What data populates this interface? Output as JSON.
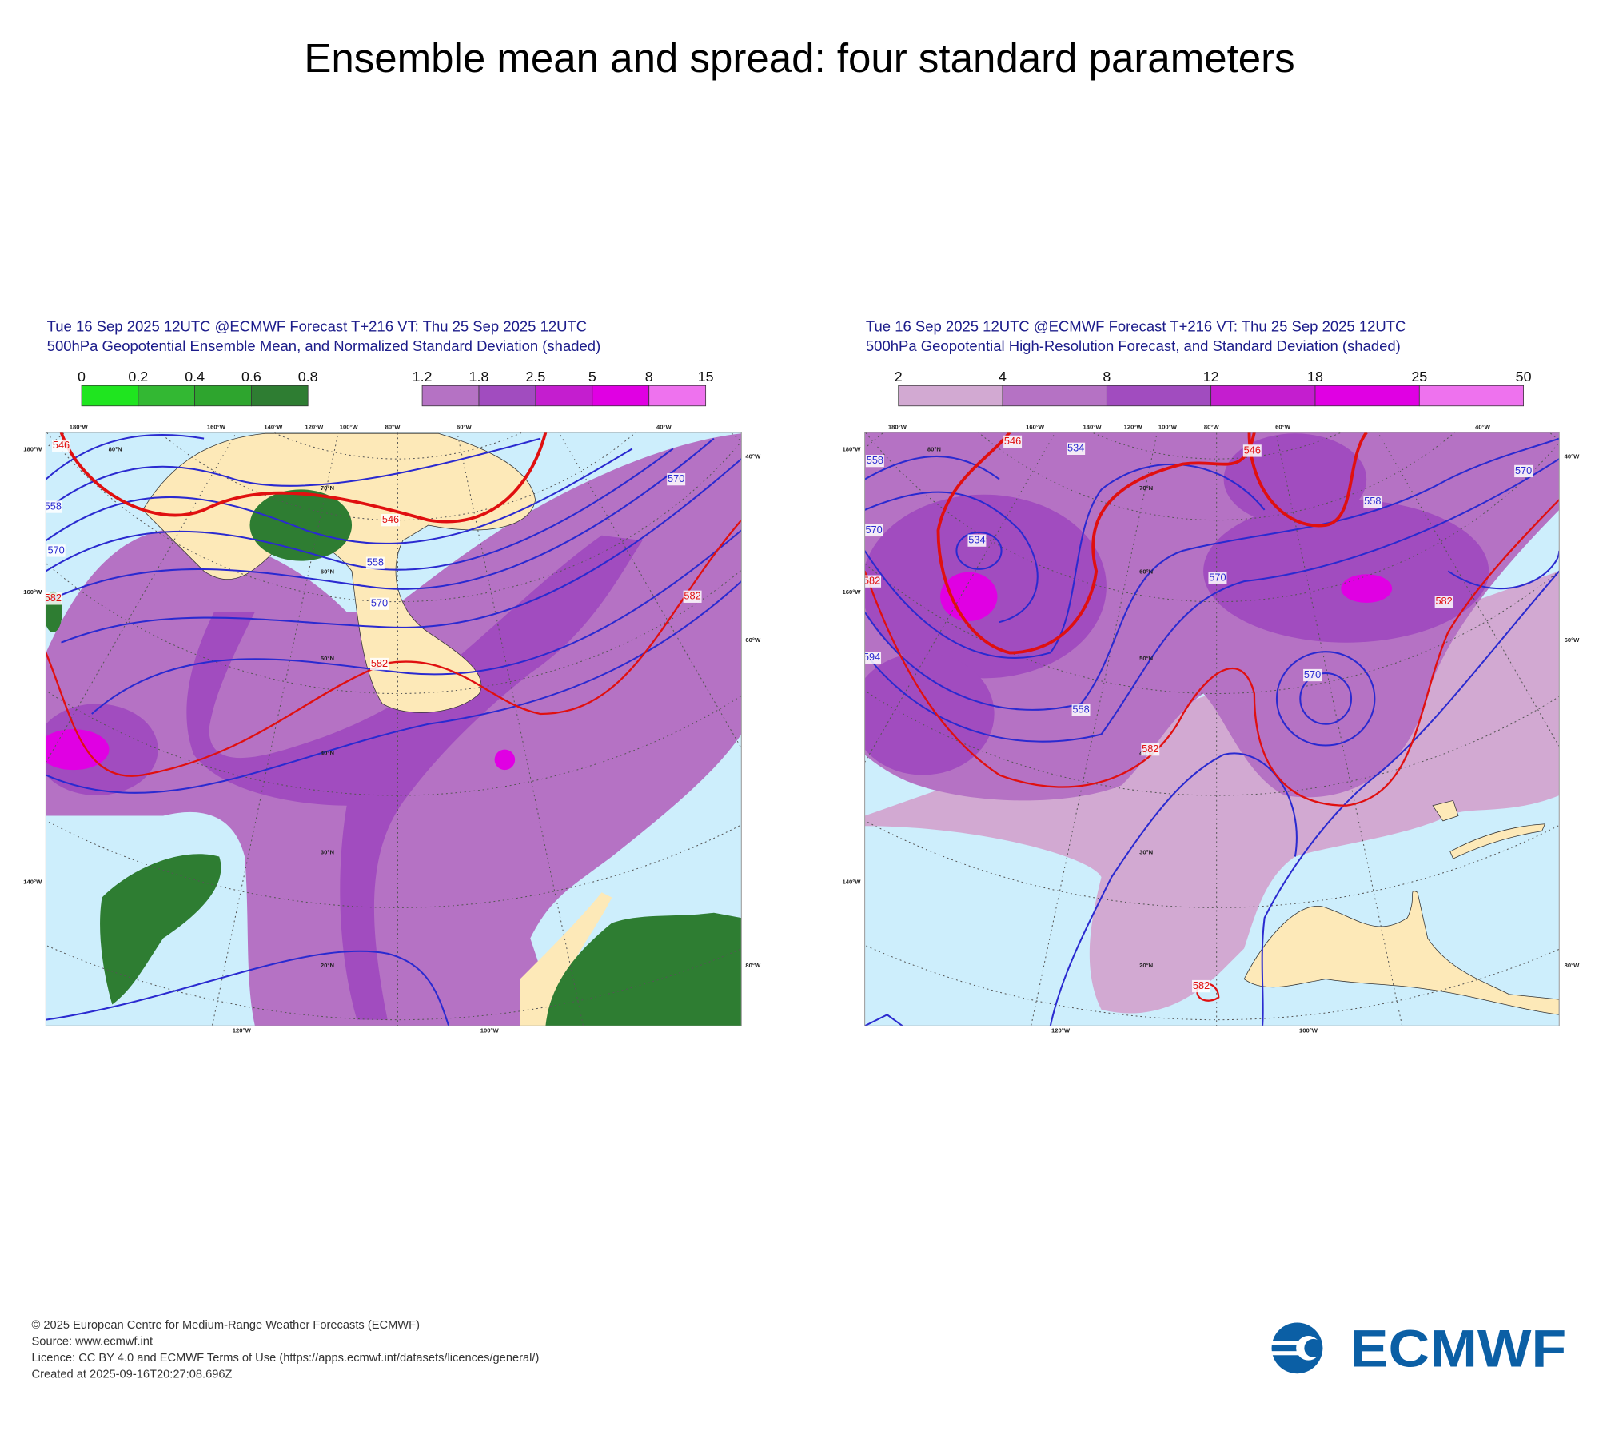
{
  "title": "Ensemble mean and spread: four standard parameters",
  "panels": [
    {
      "header": [
        "Tue 16 Sep 2025 12UTC @ECMWF Forecast T+216 VT: Thu 25 Sep 2025 12UTC",
        "500hPa Geopotential Ensemble Mean, and Normalized Standard Deviation (shaded)"
      ],
      "colorbars": [
        {
          "ticks": [
            0,
            0.2,
            0.4,
            0.6,
            0.8
          ],
          "colors": [
            "#1fe51f",
            "#33b833",
            "#2ea52e",
            "#2e7d32"
          ]
        },
        {
          "ticks": [
            1.2,
            1.8,
            2.5,
            5,
            8,
            15
          ],
          "colors": [
            "#b572c4",
            "#a14cbf",
            "#c41ecf",
            "#e000e3",
            "#ee72ee"
          ]
        }
      ],
      "map_labels": [
        "180°W",
        "160°W",
        "140°W",
        "120°W",
        "100°W",
        "80°W",
        "60°W",
        "40°W",
        "180°W",
        "160°W",
        "140°W",
        "40°W",
        "60°W",
        "80°W",
        "120°W",
        "100°W",
        "80°N",
        "70°N",
        "60°N",
        "50°N",
        "40°N",
        "30°N",
        "20°N"
      ],
      "contour_labels": [
        546,
        558,
        570,
        582,
        558,
        570,
        582,
        570,
        582,
        546
      ]
    },
    {
      "header": [
        "Tue 16 Sep 2025 12UTC @ECMWF Forecast T+216 VT: Thu 25 Sep 2025 12UTC",
        "500hPa Geopotential High-Resolution Forecast, and Standard Deviation (shaded)"
      ],
      "colorbars": [
        {
          "ticks": [
            2,
            4,
            8,
            12,
            18,
            25,
            50
          ],
          "colors": [
            "#d2a9d2",
            "#b572c4",
            "#a14cbf",
            "#c41ecf",
            "#e000e3",
            "#ee72ee"
          ]
        }
      ],
      "map_labels": [
        "180°W",
        "160°W",
        "140°W",
        "120°W",
        "100°W",
        "80°W",
        "60°W",
        "40°W",
        "180°W",
        "160°W",
        "140°W",
        "40°W",
        "60°W",
        "80°W",
        "120°W",
        "100°W",
        "80°N",
        "70°N",
        "60°N",
        "50°N",
        "40°N",
        "30°N",
        "20°N"
      ],
      "contour_labels": [
        546,
        534,
        558,
        570,
        534,
        582,
        594,
        558,
        570,
        546,
        558,
        570,
        582,
        570,
        582,
        582
      ]
    }
  ],
  "footer": [
    "© 2025 European Centre for Medium-Range Weather Forecasts (ECMWF)",
    "Source: www.ecmwf.int",
    "Licence: CC BY 4.0 and ECMWF Terms of Use (https://apps.ecmwf.int/datasets/licences/general/)",
    "Created at 2025-09-16T20:27:08.696Z"
  ],
  "logo": "ECMWF"
}
